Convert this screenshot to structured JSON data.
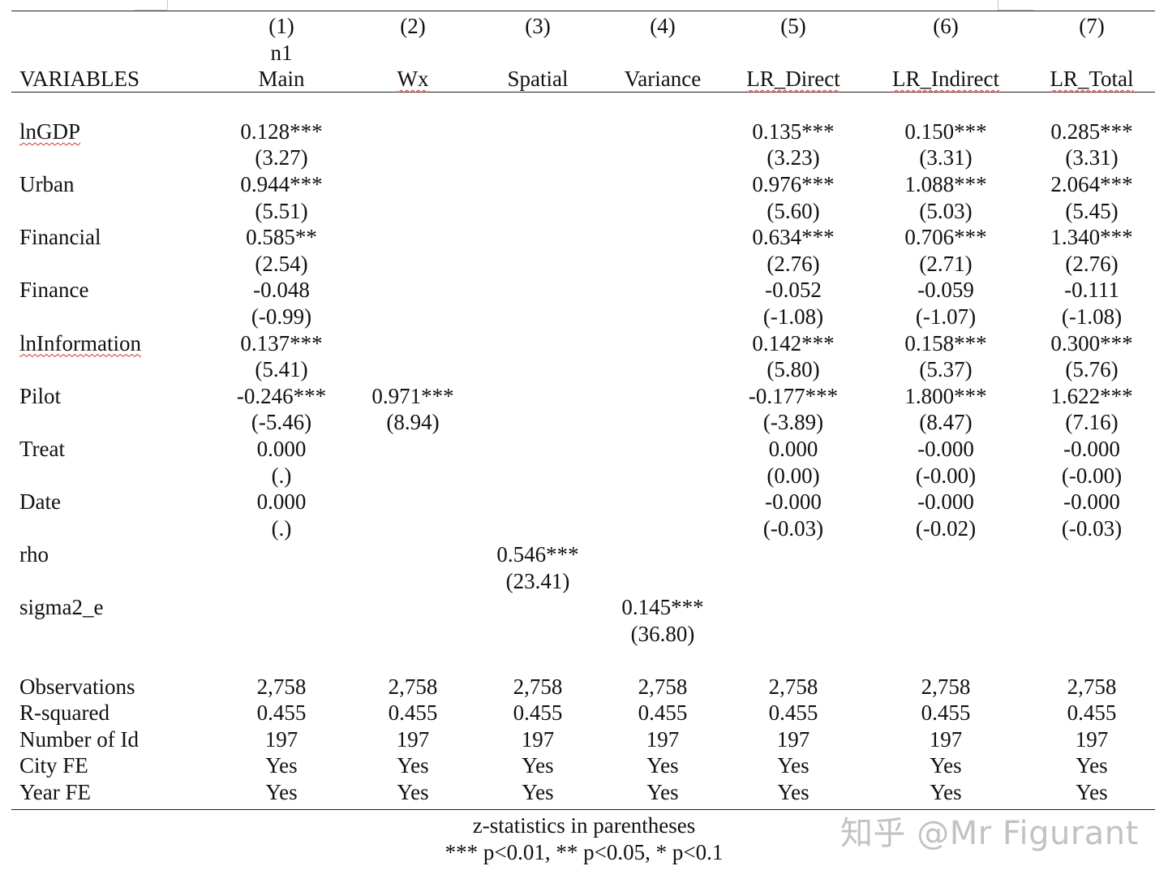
{
  "table": {
    "col_numbers": [
      "(1)",
      "(2)",
      "(3)",
      "(4)",
      "(5)",
      "(6)",
      "(7)"
    ],
    "subheader": [
      "n1",
      "",
      "",
      "",
      "",
      "",
      ""
    ],
    "var_header": "VARIABLES",
    "col_labels": [
      "Main",
      "Wx",
      "Spatial",
      "Variance",
      "LR_Direct",
      "LR_Indirect",
      "LR_Total"
    ],
    "rows": [
      {
        "name": "lnGDP",
        "coef": [
          "0.128***",
          "",
          "",
          "",
          "0.135***",
          "0.150***",
          "0.285***"
        ],
        "stat": [
          "(3.27)",
          "",
          "",
          "",
          "(3.23)",
          "(3.31)",
          "(3.31)"
        ]
      },
      {
        "name": "Urban",
        "coef": [
          "0.944***",
          "",
          "",
          "",
          "0.976***",
          "1.088***",
          "2.064***"
        ],
        "stat": [
          "(5.51)",
          "",
          "",
          "",
          "(5.60)",
          "(5.03)",
          "(5.45)"
        ]
      },
      {
        "name": "Financial",
        "coef": [
          "0.585**",
          "",
          "",
          "",
          "0.634***",
          "0.706***",
          "1.340***"
        ],
        "stat": [
          "(2.54)",
          "",
          "",
          "",
          "(2.76)",
          "(2.71)",
          "(2.76)"
        ]
      },
      {
        "name": "Finance",
        "coef": [
          "-0.048",
          "",
          "",
          "",
          "-0.052",
          "-0.059",
          "-0.111"
        ],
        "stat": [
          "(-0.99)",
          "",
          "",
          "",
          "(-1.08)",
          "(-1.07)",
          "(-1.08)"
        ]
      },
      {
        "name": "lnInformation",
        "coef": [
          "0.137***",
          "",
          "",
          "",
          "0.142***",
          "0.158***",
          "0.300***"
        ],
        "stat": [
          "(5.41)",
          "",
          "",
          "",
          "(5.80)",
          "(5.37)",
          "(5.76)"
        ]
      },
      {
        "name": "Pilot",
        "coef": [
          "-0.246***",
          "0.971***",
          "",
          "",
          "-0.177***",
          "1.800***",
          "1.622***"
        ],
        "stat": [
          "(-5.46)",
          "(8.94)",
          "",
          "",
          "(-3.89)",
          "(8.47)",
          "(7.16)"
        ]
      },
      {
        "name": "Treat",
        "coef": [
          "0.000",
          "",
          "",
          "",
          "0.000",
          "-0.000",
          "-0.000"
        ],
        "stat": [
          "(.)",
          "",
          "",
          "",
          "(0.00)",
          "(-0.00)",
          "(-0.00)"
        ]
      },
      {
        "name": "Date",
        "coef": [
          "0.000",
          "",
          "",
          "",
          "-0.000",
          "-0.000",
          "-0.000"
        ],
        "stat": [
          "(.)",
          "",
          "",
          "",
          "(-0.03)",
          "(-0.02)",
          "(-0.03)"
        ]
      },
      {
        "name": "rho",
        "coef": [
          "",
          "",
          "0.546***",
          "",
          "",
          "",
          ""
        ],
        "stat": [
          "",
          "",
          "(23.41)",
          "",
          "",
          "",
          ""
        ]
      },
      {
        "name": "sigma2_e",
        "coef": [
          "",
          "",
          "",
          "0.145***",
          "",
          "",
          ""
        ],
        "stat": [
          "",
          "",
          "",
          "(36.80)",
          "",
          "",
          ""
        ]
      }
    ],
    "summary": [
      {
        "name": "Observations",
        "values": [
          "2,758",
          "2,758",
          "2,758",
          "2,758",
          "2,758",
          "2,758",
          "2,758"
        ]
      },
      {
        "name": "R-squared",
        "values": [
          "0.455",
          "0.455",
          "0.455",
          "0.455",
          "0.455",
          "0.455",
          "0.455"
        ]
      },
      {
        "name": "Number of Id",
        "values": [
          "197",
          "197",
          "197",
          "197",
          "197",
          "197",
          "197"
        ]
      },
      {
        "name": "City FE",
        "values": [
          "Yes",
          "Yes",
          "Yes",
          "Yes",
          "Yes",
          "Yes",
          "Yes"
        ]
      },
      {
        "name": "Year FE",
        "values": [
          "Yes",
          "Yes",
          "Yes",
          "Yes",
          "Yes",
          "Yes",
          "Yes"
        ]
      }
    ]
  },
  "notes": {
    "line1": "z-statistics in parentheses",
    "line2": "*** p<0.01, ** p<0.05, * p<0.1"
  },
  "watermark": "知乎 @Mr Figurant"
}
